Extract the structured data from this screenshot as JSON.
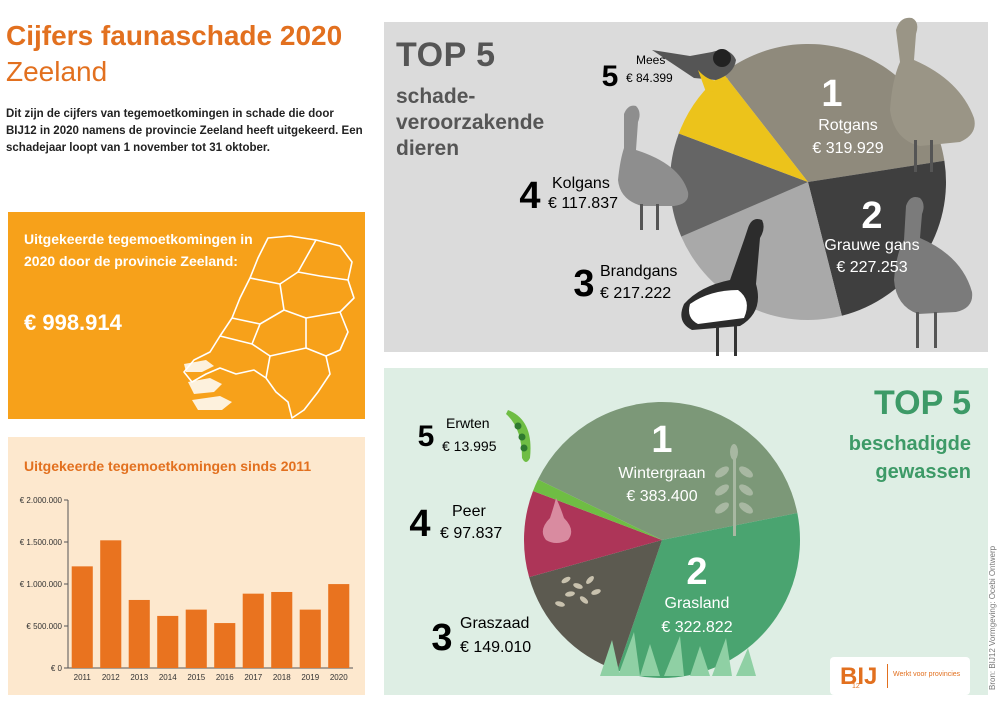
{
  "header": {
    "title": "Cijfers faunaschade 2020",
    "region": "Zeeland",
    "intro": "Dit zijn de cijfers van tegemoetkomingen in schade die door BIJ12 in 2020 namens de provincie Zeeland heeft uitgekeerd. Een schadejaar loopt van 1 november tot 31 oktober."
  },
  "total": {
    "label": "Uitgekeerde tegemoetkomingen in 2020 door de provincie Zeeland:",
    "value": "€ 998.914"
  },
  "history": {
    "title": "Uitgekeerde tegemoetkomingen sinds 2011"
  },
  "animals": {
    "top": "TOP 5",
    "subtitle": "schade-veroorzakende dieren"
  },
  "crops": {
    "top": "TOP 5",
    "subtitle": "beschadigde gewassen"
  },
  "logo": {
    "mark": "BIJ",
    "sub": "12",
    "tagline": "Werkt voor provincies"
  },
  "credit": "Bron: BIJ12   Vormgeving: Ocebi Ontwerp",
  "colors": {
    "orange": "#f7a11a",
    "dark_orange": "#e2701f",
    "bar": "#e9731f",
    "green": "#3d9a67"
  },
  "chart_data": [
    {
      "type": "bar",
      "title": "Uitgekeerde tegemoetkomingen sinds 2011",
      "categories": [
        "2011",
        "2012",
        "2013",
        "2014",
        "2015",
        "2016",
        "2017",
        "2018",
        "2019",
        "2020"
      ],
      "values": [
        1210000,
        1520000,
        810000,
        620000,
        695000,
        535000,
        885000,
        905000,
        695000,
        999000
      ],
      "ylim": [
        0,
        2000000
      ],
      "yticks": [
        0,
        500000,
        1000000,
        1500000,
        2000000
      ],
      "ytick_labels": [
        "€ 0",
        "€ 500.000",
        "€ 1.000.000",
        "€ 1.500.000",
        "€ 2.000.000"
      ],
      "color": "#e9731f"
    },
    {
      "type": "pie",
      "title": "TOP 5 schadeveroorzakende dieren",
      "slices": [
        {
          "rank": "1",
          "name": "Rotgans",
          "value": 319929,
          "value_label": "€ 319.929",
          "color": "#8f8a7c"
        },
        {
          "rank": "2",
          "name": "Grauwe gans",
          "value": 227253,
          "value_label": "€ 227.253",
          "color": "#3f3f3f"
        },
        {
          "rank": "3",
          "name": "Brandgans",
          "value": 217222,
          "value_label": "€ 217.222",
          "color": "#a9a9a9"
        },
        {
          "rank": "4",
          "name": "Kolgans",
          "value": 117837,
          "value_label": "€ 117.837",
          "color": "#656565"
        },
        {
          "rank": "5",
          "name": "Mees",
          "value": 84399,
          "value_label": "€ 84.399",
          "color": "#ecc31b"
        }
      ]
    },
    {
      "type": "pie",
      "title": "TOP 5 beschadigde gewassen",
      "slices": [
        {
          "rank": "1",
          "name": "Wintergraan",
          "value": 383400,
          "value_label": "€ 383.400",
          "color": "#7c9878"
        },
        {
          "rank": "2",
          "name": "Grasland",
          "value": 322822,
          "value_label": "€ 322.822",
          "color": "#4aa470"
        },
        {
          "rank": "3",
          "name": "Graszaad",
          "value": 149010,
          "value_label": "€ 149.010",
          "color": "#5c5a50"
        },
        {
          "rank": "4",
          "name": "Peer",
          "value": 97837,
          "value_label": "€ 97.837",
          "color": "#ad3558"
        },
        {
          "rank": "5",
          "name": "Erwten",
          "value": 13995,
          "value_label": "€ 13.995",
          "color": "#6fbd44"
        }
      ]
    }
  ]
}
